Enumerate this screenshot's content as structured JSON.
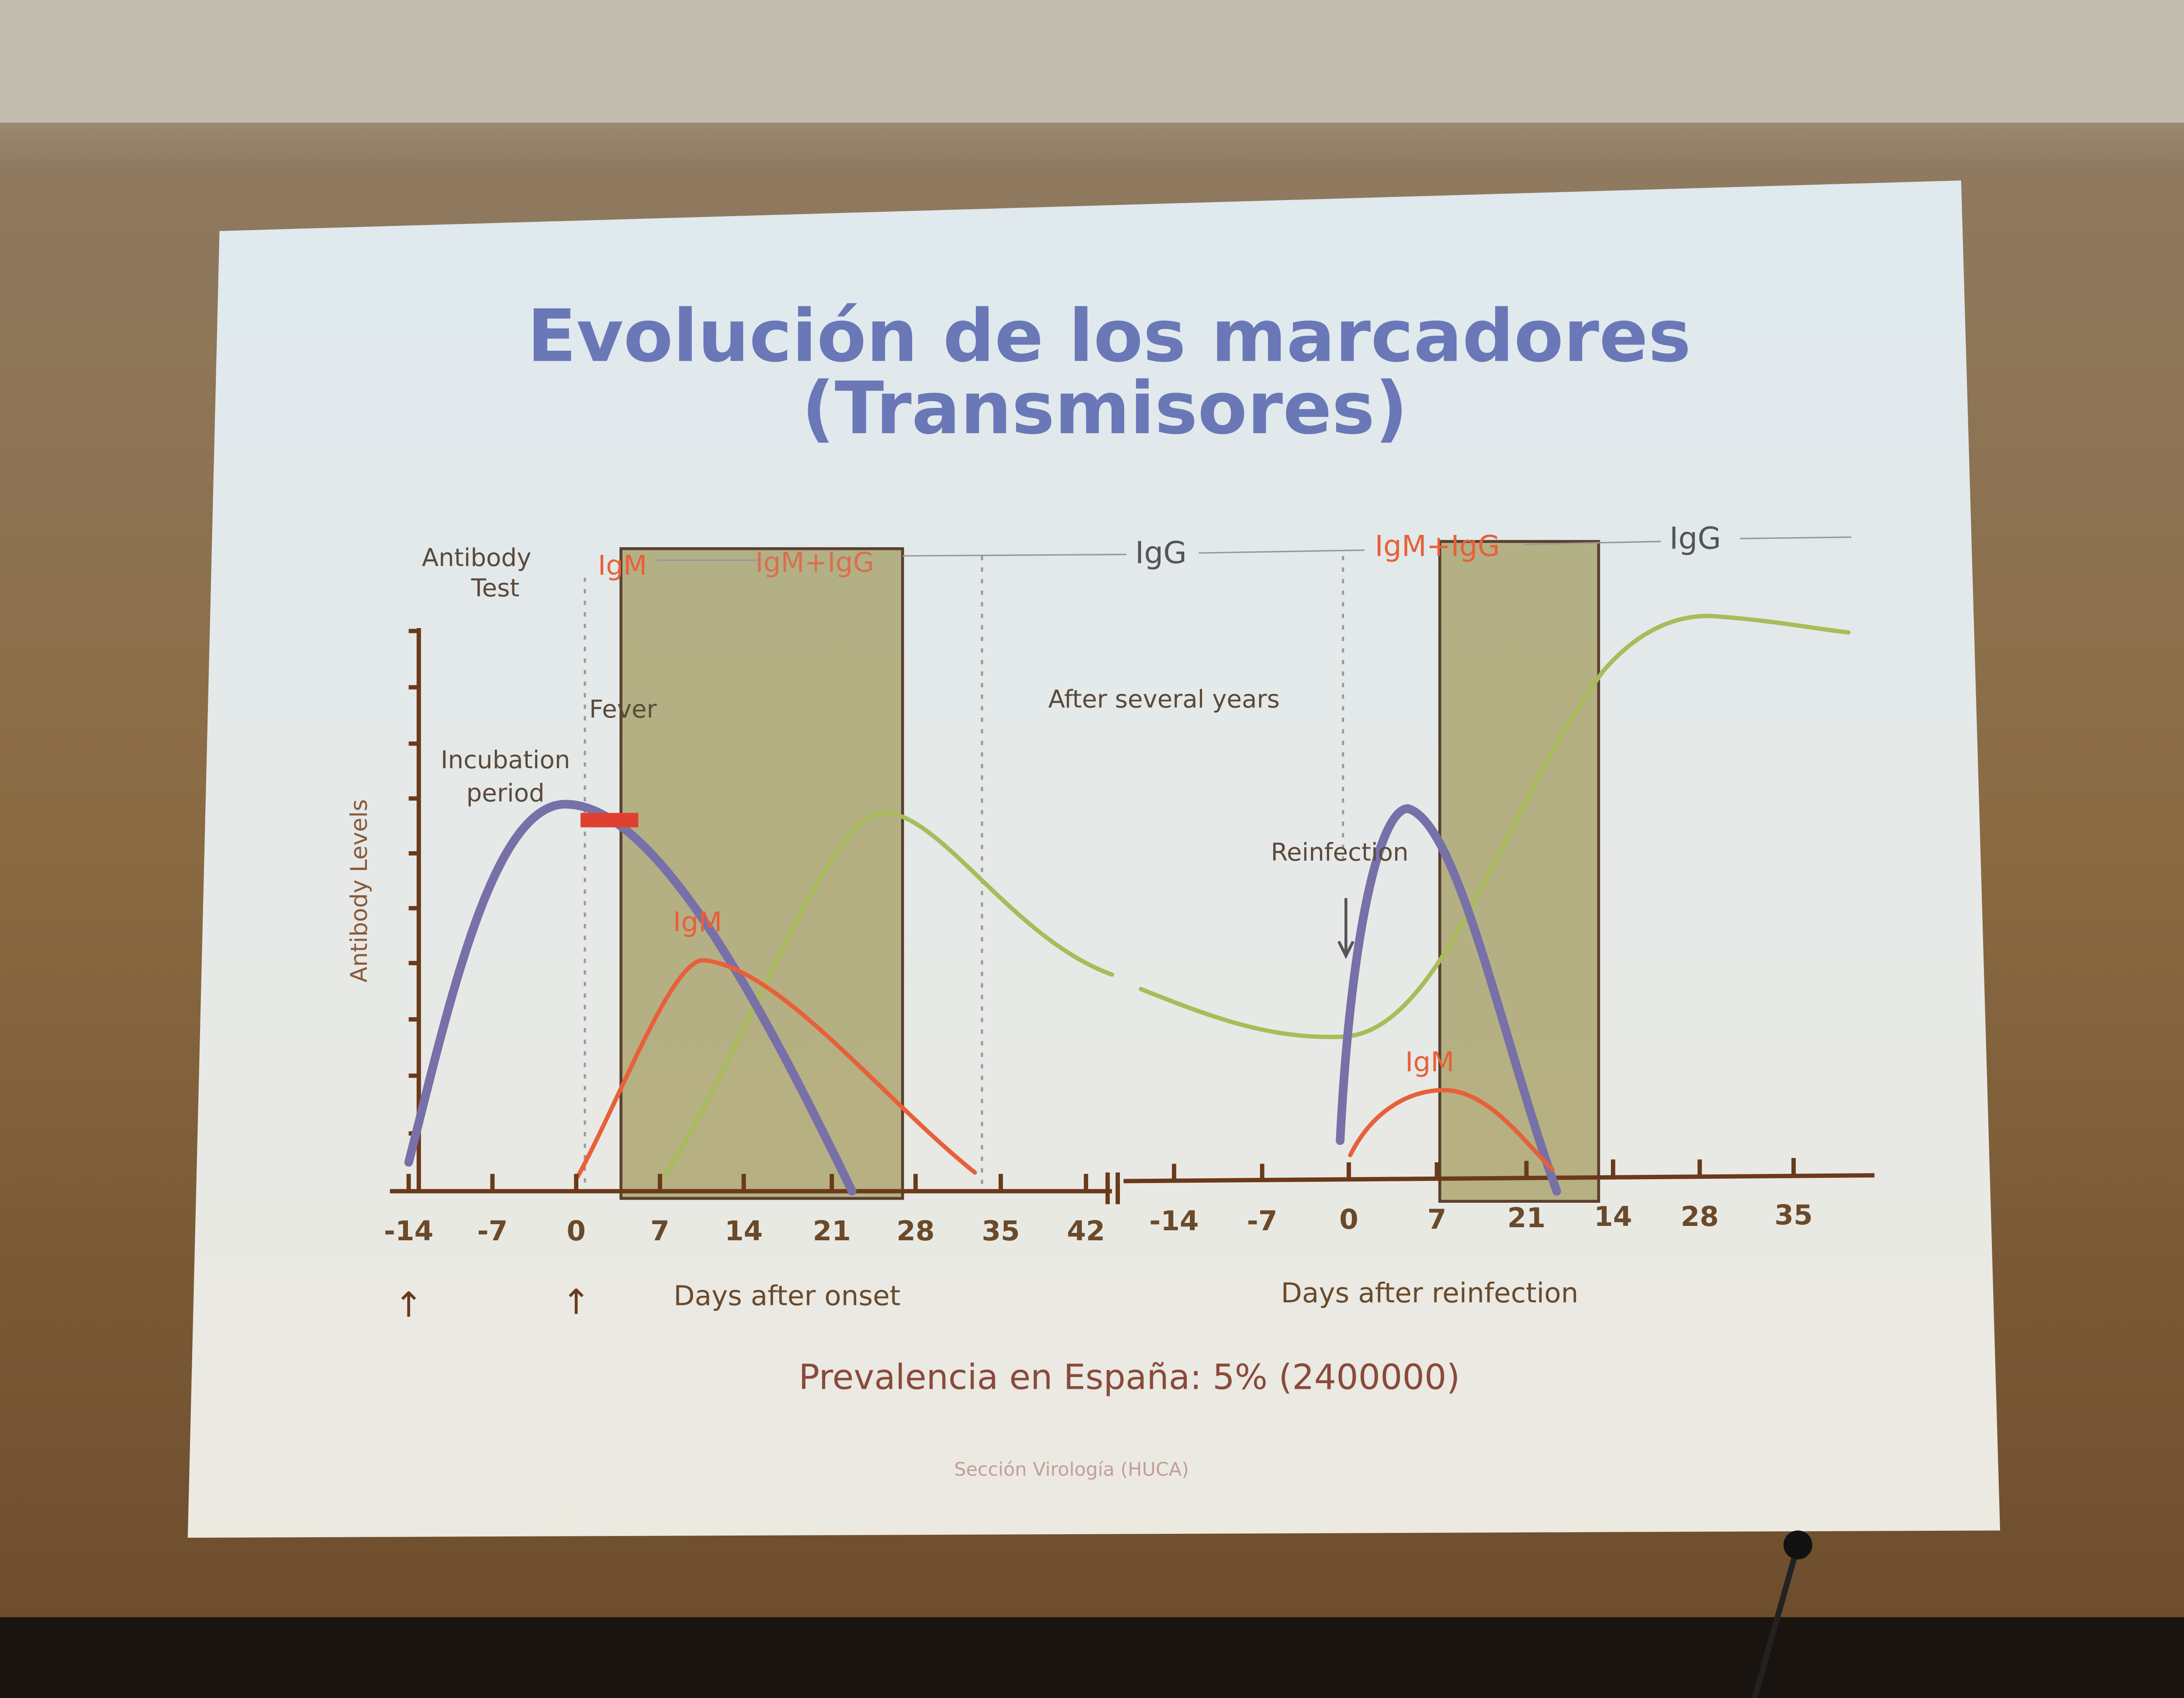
{
  "title": [
    "Evolución de los marcadores",
    "(Transmisores)"
  ],
  "antibody_test": [
    "Antibody",
    "Test"
  ],
  "test_phases": [
    "IgM",
    "IgM+IgG",
    "IgG",
    "IgM+IgG",
    "IgG"
  ],
  "y_axis_label": "Antibody Levels",
  "annotations": {
    "fever": "Fever",
    "incubation": [
      "Incubation",
      "period"
    ],
    "years": "After several years",
    "reinfection": "Reinfection",
    "igm_onset": "IgM",
    "igm_reinfection": "IgM"
  },
  "x_ticks_onset": [
    "-14",
    "-7",
    "0",
    "7",
    "14",
    "21",
    "28",
    "35",
    "42"
  ],
  "x_ticks_reinfection": [
    "-14",
    "-7",
    "0",
    "7",
    "21",
    "14",
    "28",
    "35"
  ],
  "x_label_onset": "Days after onset",
  "x_label_reinfection": "Days after reinfection",
  "note": "Prevalencia en España: 5% (2400000)",
  "footer": "Sección Virología (HUCA)"
}
